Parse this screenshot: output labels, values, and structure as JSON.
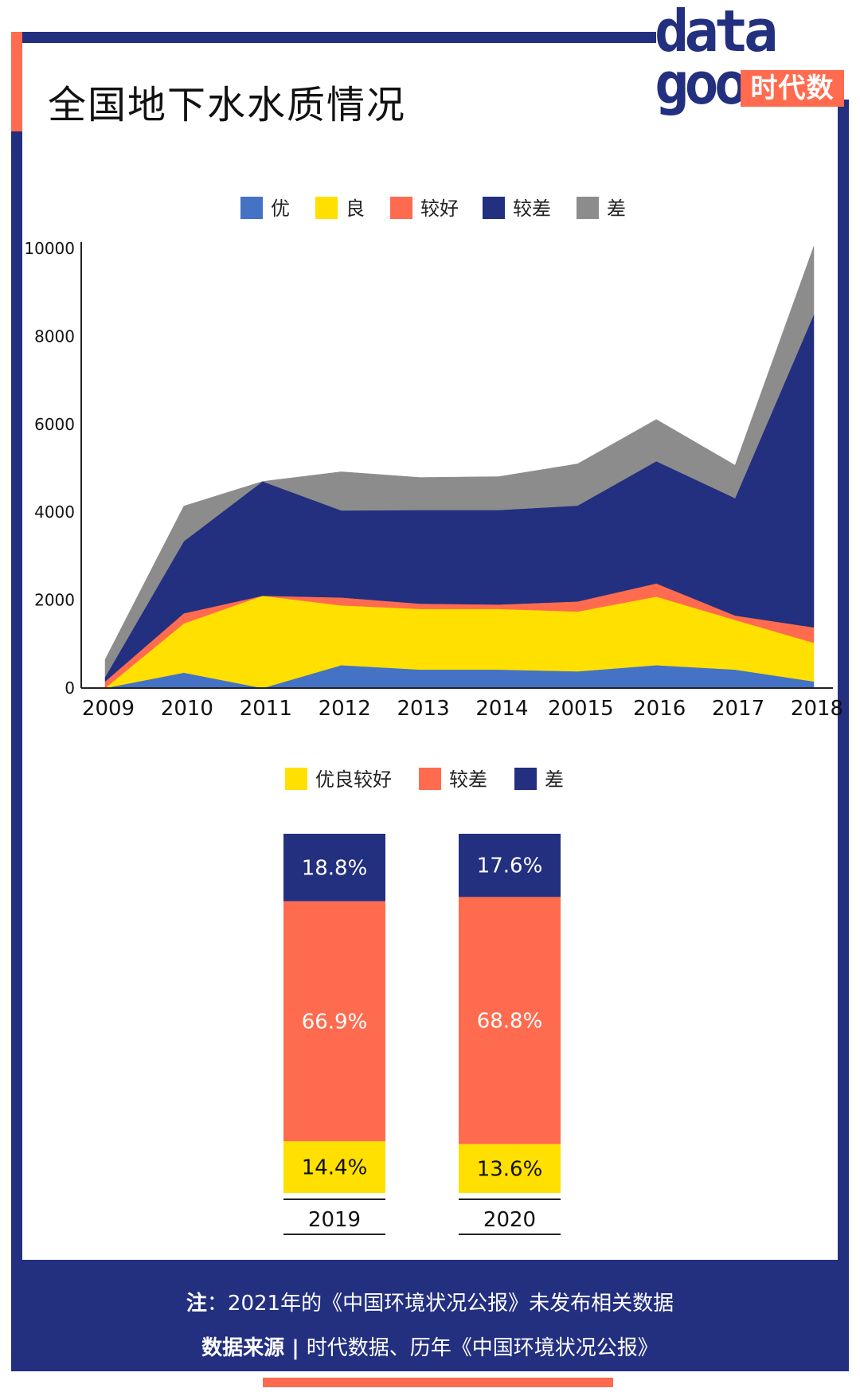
{
  "header": {
    "title": "全国地下水水质情况",
    "logo_word": "data\ngoo",
    "logo_tag": "时代数据"
  },
  "colors": {
    "frame": "#232f7f",
    "accent": "#ff6b4f",
    "优": "#4472c4",
    "良": "#ffe000",
    "较好": "#ff6b4f",
    "较差": "#232f7f",
    "差": "#8c8c8c"
  },
  "chart_data": [
    {
      "type": "area",
      "stacked": true,
      "title": "",
      "legend_position": "top-center",
      "categories": [
        "2009",
        "2010",
        "2011",
        "2012",
        "2013",
        "2014",
        "20015",
        "2016",
        "2017",
        "2018"
      ],
      "series": [
        {
          "name": "优",
          "color": "#4472c4",
          "values": [
            0,
            350,
            0,
            520,
            420,
            420,
            380,
            520,
            420,
            150
          ]
        },
        {
          "name": "良",
          "color": "#ffe000",
          "values": [
            0,
            1120,
            2100,
            1360,
            1380,
            1380,
            1360,
            1560,
            1130,
            880
          ]
        },
        {
          "name": "较好",
          "color": "#ff6b4f",
          "values": [
            150,
            230,
            0,
            180,
            120,
            100,
            230,
            300,
            100,
            350
          ]
        },
        {
          "name": "较差",
          "color": "#232f7f",
          "values": [
            100,
            1640,
            2600,
            1980,
            2130,
            2150,
            2180,
            2780,
            2670,
            7120
          ]
        },
        {
          "name": "差",
          "color": "#8c8c8c",
          "values": [
            400,
            800,
            0,
            880,
            740,
            760,
            950,
            950,
            750,
            1550
          ]
        }
      ],
      "ylim": [
        0,
        10000
      ],
      "yticks": [
        "0",
        "2000",
        "4000",
        "6000",
        "8000",
        "10000"
      ]
    },
    {
      "type": "bar",
      "stacked": true,
      "percent": true,
      "legend_position": "top-center",
      "categories": [
        "2019",
        "2020"
      ],
      "series": [
        {
          "name": "优良较好",
          "color": "#ffe000",
          "values": [
            14.4,
            13.6
          ],
          "labels": [
            "14.4%",
            "13.6%"
          ]
        },
        {
          "name": "较差",
          "color": "#ff6b4f",
          "values": [
            66.9,
            68.8
          ],
          "labels": [
            "66.9%",
            "68.8%"
          ]
        },
        {
          "name": "差",
          "color": "#232f7f",
          "values": [
            18.8,
            17.6
          ],
          "labels": [
            "18.8%",
            "17.6%"
          ]
        }
      ]
    }
  ],
  "footer": {
    "note_label": "注",
    "note_text": "：2021年的《中国环境状况公报》未发布相关数据",
    "source_label": "数据来源",
    "source_sep": " | ",
    "source_text": "时代数据、历年《中国环境状况公报》"
  }
}
